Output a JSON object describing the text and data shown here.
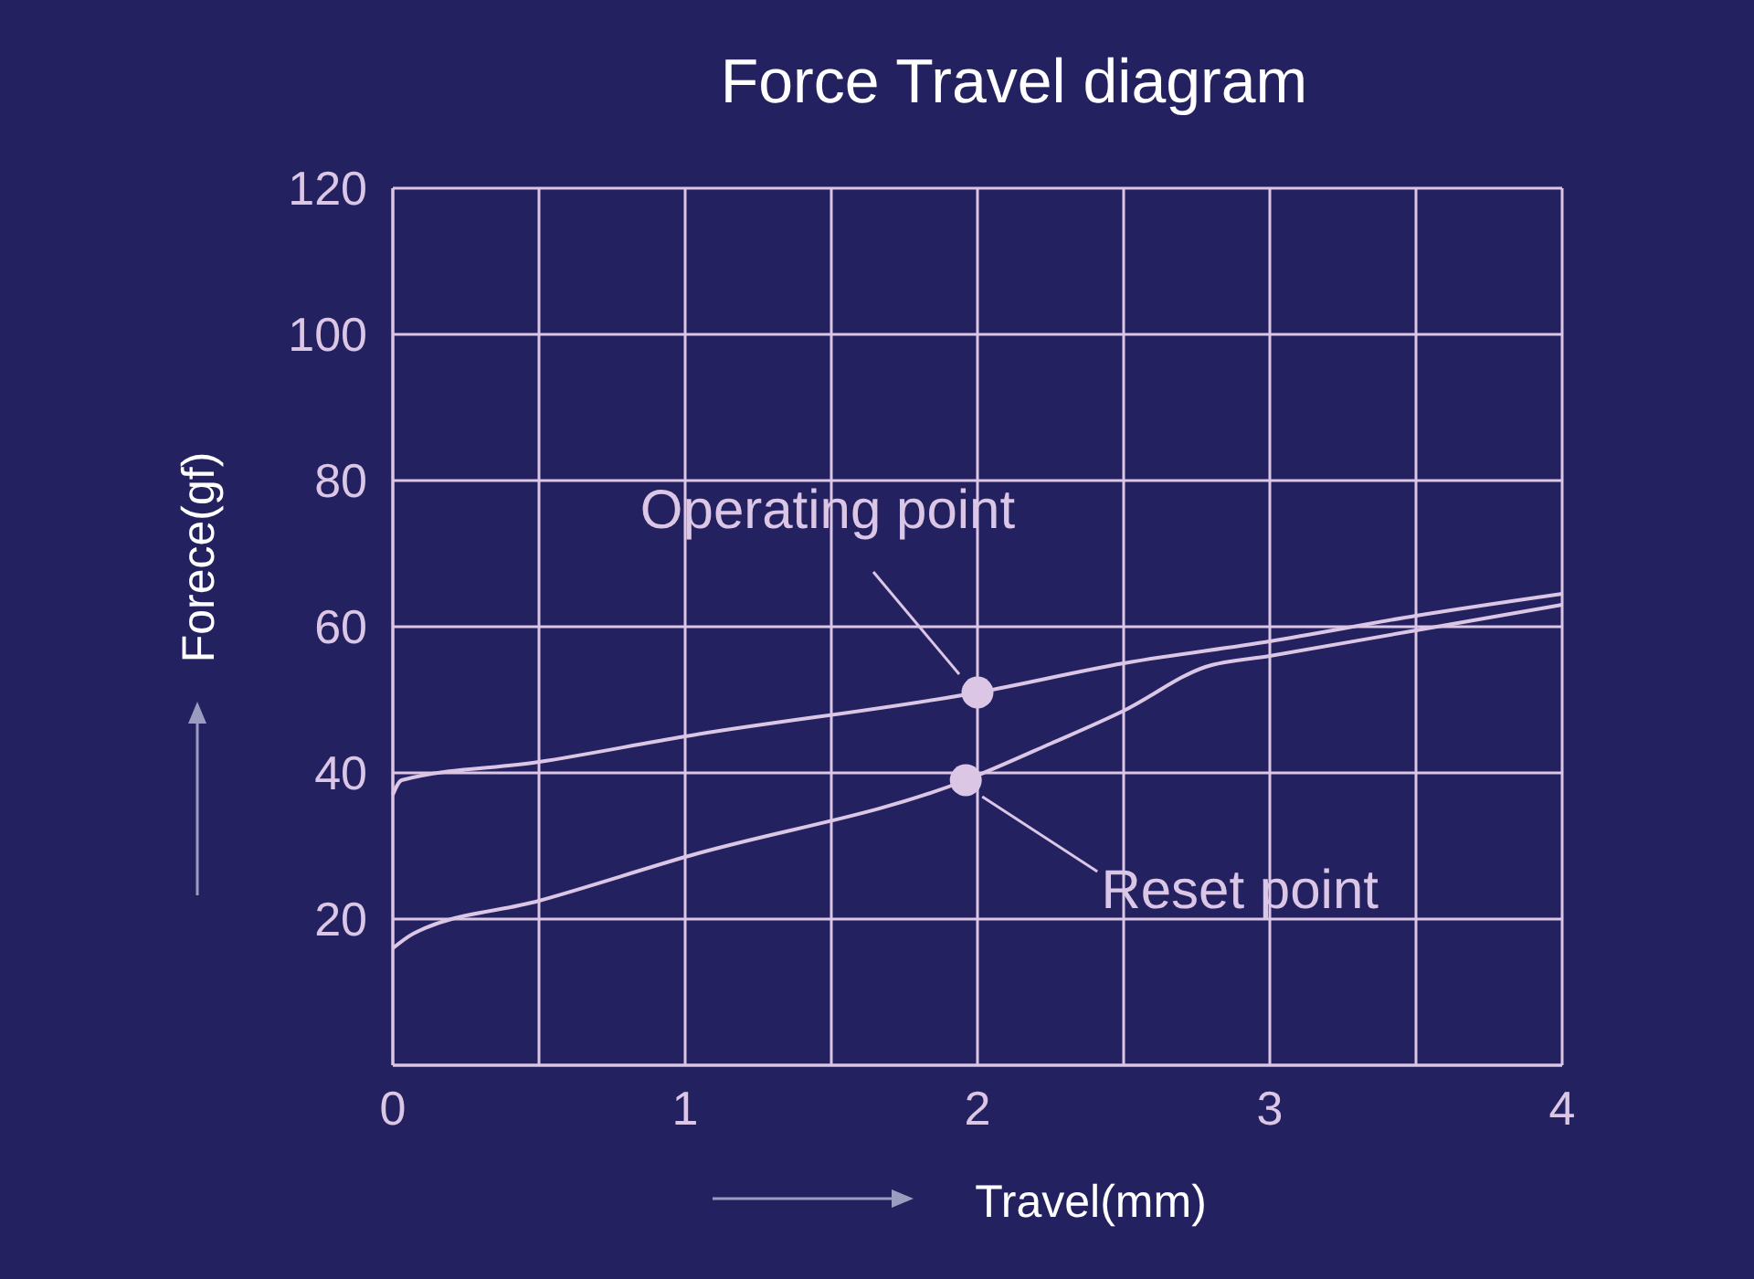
{
  "chart_data": {
    "type": "line",
    "title": "Force Travel diagram",
    "xlabel": "Travel(mm)",
    "ylabel": "Forece(gf)",
    "xlim": [
      0,
      4
    ],
    "xticks": [
      0,
      {
        "value": 0.5,
        "label": null
      },
      1,
      {
        "value": 1.5,
        "label": null
      },
      2,
      {
        "value": 2.5,
        "label": null
      },
      3,
      {
        "value": 3.5,
        "label": null
      },
      4
    ],
    "ylim": [
      0,
      120
    ],
    "yticks": [
      {
        "value": 0,
        "label": null
      },
      20,
      40,
      60,
      80,
      100,
      120
    ],
    "grid": true,
    "marker": "none",
    "line_style": "solid",
    "series": [
      {
        "color": "#dcc6e6",
        "x": [
          0,
          0.03,
          0.5,
          1,
          2,
          2.5,
          3,
          3.5,
          4
        ],
        "values": [
          37,
          39,
          41.5,
          45,
          51,
          55,
          58,
          61.5,
          64.5
        ]
      },
      {
        "color": "#dcc6e6",
        "x": [
          0,
          0.07,
          0.5,
          1,
          1.96,
          2.25,
          2.5,
          2.78,
          3,
          3.5,
          4
        ],
        "values": [
          16,
          18,
          22.5,
          28.5,
          39,
          44,
          48.5,
          54.5,
          56,
          59.5,
          63
        ]
      },
      {
        "type": "scatter",
        "color": "#dcc6e6",
        "marker": "circle",
        "x": [
          2,
          1.96
        ],
        "values": [
          51,
          39
        ]
      }
    ],
    "annotations": [
      {
        "text": "Operating point",
        "x": 2,
        "y": 51
      },
      {
        "text": "Reset point",
        "x": 1.96,
        "y": 39
      }
    ]
  }
}
